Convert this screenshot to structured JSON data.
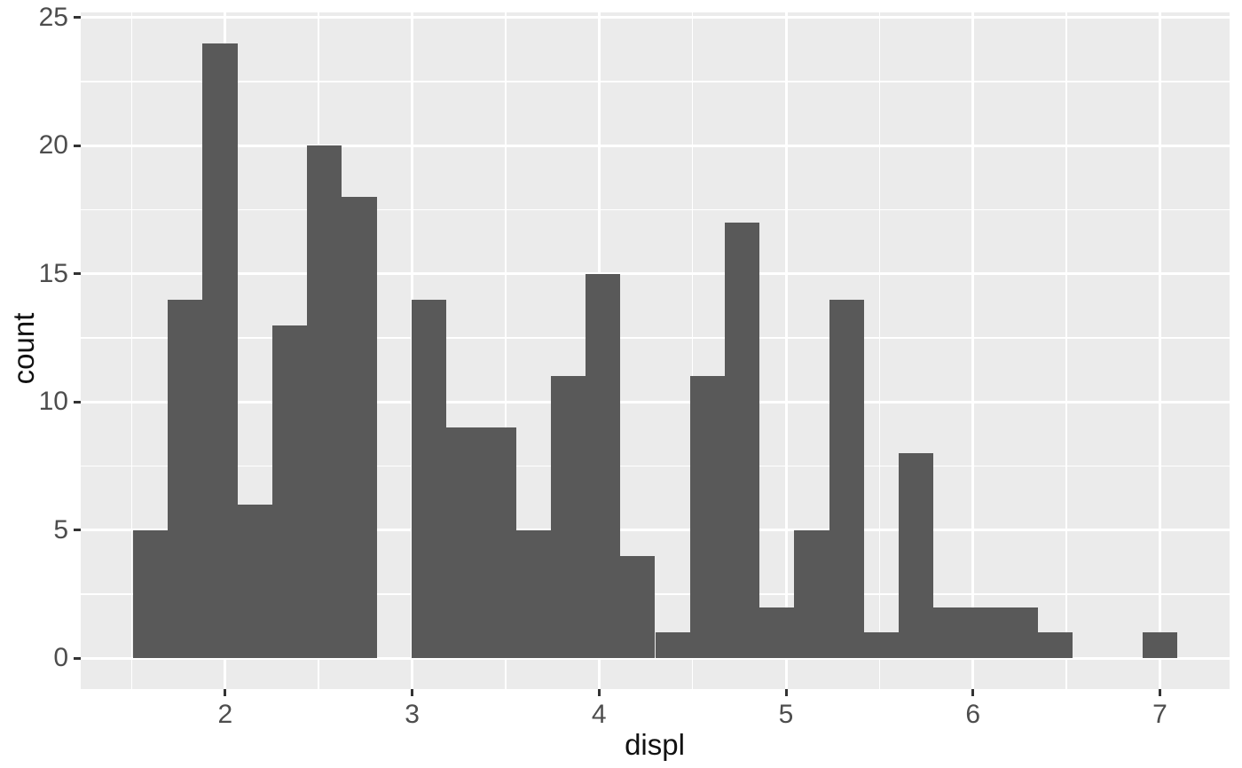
{
  "chart_data": {
    "type": "bar",
    "subtype": "histogram",
    "title": "",
    "xlabel": "displ",
    "ylabel": "count",
    "bins": {
      "start": 1.506897,
      "width": 0.186207,
      "count": 30
    },
    "counts": [
      5,
      14,
      24,
      6,
      13,
      20,
      18,
      0,
      14,
      9,
      9,
      5,
      11,
      15,
      4,
      1,
      11,
      17,
      2,
      5,
      14,
      1,
      8,
      2,
      2,
      2,
      1,
      0,
      0,
      1
    ],
    "total_observations": 234,
    "x_ticks": [
      "2",
      "3",
      "4",
      "5",
      "6",
      "7"
    ],
    "x_tick_values": [
      2,
      3,
      4,
      5,
      6,
      7
    ],
    "y_ticks": [
      "0",
      "5",
      "10",
      "15",
      "20",
      "25"
    ],
    "y_tick_values": [
      0,
      5,
      10,
      15,
      20,
      25
    ],
    "x_minor_values": [
      1.5,
      2.5,
      3.5,
      4.5,
      5.5,
      6.5
    ],
    "y_minor_values": [
      2.5,
      7.5,
      12.5,
      17.5,
      22.5
    ],
    "x_range": [
      1.2275,
      7.3725
    ],
    "y_range": [
      -1.2,
      25.2
    ],
    "grid": "on",
    "legend_position": "none",
    "colors": {
      "bar_fill": "#595959",
      "panel_background": "#EBEBEB",
      "gridline": "#FFFFFF",
      "tick_label": "#4D4D4D",
      "axis_title": "#111111",
      "tick_mark": "#333333",
      "page_background": "#FFFFFF"
    }
  }
}
